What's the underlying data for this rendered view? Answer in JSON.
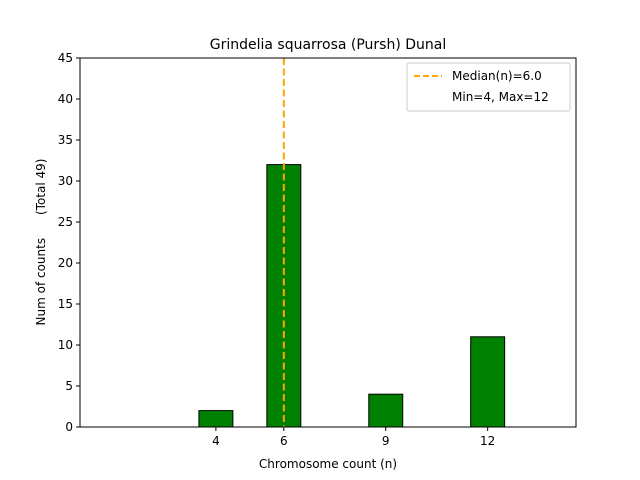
{
  "chart_data": {
    "type": "bar",
    "title": "Grindelia squarrosa (Pursh) Dunal",
    "xlabel": "Chromosome count (n)",
    "ylabel": "Num of counts      (Total 49)",
    "x": [
      4,
      6,
      9,
      12
    ],
    "values": [
      2,
      32,
      4,
      11
    ],
    "xticks": [
      4,
      6,
      9,
      12
    ],
    "yticks": [
      0,
      5,
      10,
      15,
      20,
      25,
      30,
      35,
      40,
      45
    ],
    "xlim": [
      0,
      14.6
    ],
    "ylim": [
      0,
      45
    ],
    "bar_width": 1,
    "bar_color": "#008000",
    "bar_edge_color": "#000000",
    "median": 6.0,
    "median_color": "#ffa500",
    "legend": {
      "placement": "top-right",
      "entries": [
        "Median(n)=6.0",
        "Min=4, Max=12"
      ]
    },
    "grid": false
  }
}
